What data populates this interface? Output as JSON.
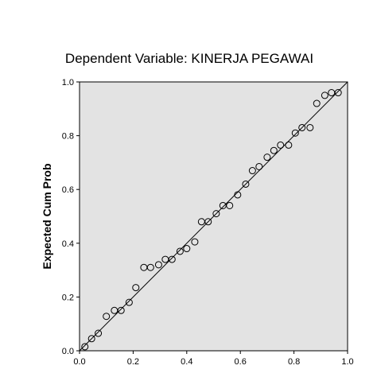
{
  "chart_data": {
    "type": "scatter",
    "title": "Dependent Variable: KINERJA PEGAWAI",
    "xlabel": "",
    "ylabel": "Expected Cum Prob",
    "xlim": [
      0,
      1
    ],
    "ylim": [
      0,
      1
    ],
    "x_ticks": [
      "0.0",
      "0.2",
      "0.4",
      "0.6",
      "0.8",
      "1.0"
    ],
    "y_ticks": [
      "0.0",
      "0.2",
      "0.4",
      "0.6",
      "0.8",
      "1.0"
    ],
    "reference_line": [
      [
        0,
        0
      ],
      [
        1,
        1
      ]
    ],
    "grid": false,
    "plot_background": "#e3e3e3",
    "marker": "open-circle",
    "points": [
      {
        "x": 0.02,
        "y": 0.015
      },
      {
        "x": 0.045,
        "y": 0.045
      },
      {
        "x": 0.07,
        "y": 0.065
      },
      {
        "x": 0.1,
        "y": 0.128
      },
      {
        "x": 0.13,
        "y": 0.15
      },
      {
        "x": 0.155,
        "y": 0.15
      },
      {
        "x": 0.185,
        "y": 0.18
      },
      {
        "x": 0.21,
        "y": 0.235
      },
      {
        "x": 0.24,
        "y": 0.31
      },
      {
        "x": 0.265,
        "y": 0.31
      },
      {
        "x": 0.295,
        "y": 0.32
      },
      {
        "x": 0.32,
        "y": 0.34
      },
      {
        "x": 0.345,
        "y": 0.34
      },
      {
        "x": 0.375,
        "y": 0.37
      },
      {
        "x": 0.4,
        "y": 0.38
      },
      {
        "x": 0.43,
        "y": 0.405
      },
      {
        "x": 0.455,
        "y": 0.48
      },
      {
        "x": 0.48,
        "y": 0.48
      },
      {
        "x": 0.51,
        "y": 0.51
      },
      {
        "x": 0.535,
        "y": 0.54
      },
      {
        "x": 0.56,
        "y": 0.54
      },
      {
        "x": 0.59,
        "y": 0.58
      },
      {
        "x": 0.62,
        "y": 0.62
      },
      {
        "x": 0.645,
        "y": 0.67
      },
      {
        "x": 0.67,
        "y": 0.685
      },
      {
        "x": 0.7,
        "y": 0.72
      },
      {
        "x": 0.725,
        "y": 0.745
      },
      {
        "x": 0.75,
        "y": 0.765
      },
      {
        "x": 0.78,
        "y": 0.765
      },
      {
        "x": 0.805,
        "y": 0.81
      },
      {
        "x": 0.83,
        "y": 0.83
      },
      {
        "x": 0.86,
        "y": 0.83
      },
      {
        "x": 0.885,
        "y": 0.92
      },
      {
        "x": 0.915,
        "y": 0.95
      },
      {
        "x": 0.94,
        "y": 0.96
      },
      {
        "x": 0.965,
        "y": 0.96
      }
    ]
  }
}
